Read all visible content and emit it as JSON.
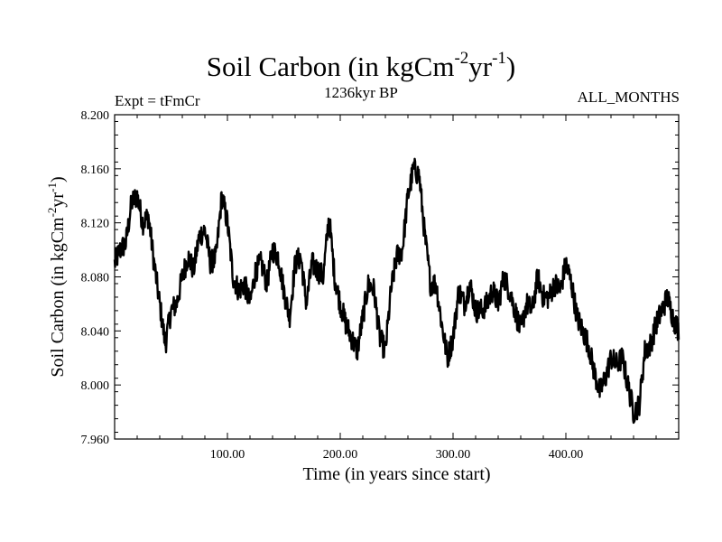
{
  "chart_data": {
    "type": "line",
    "title_main": "Soil Carbon (in kgCm",
    "title_exp1": "-2",
    "title_mid": "yr",
    "title_exp2": "-1",
    "title_end": ")",
    "subtitle": "1236kyr BP",
    "experiment_label": "Expt = tFmCr",
    "season_label": "ALL_MONTHS",
    "xlabel": "Time (in years since start)",
    "ylabel_main": "Soil Carbon (in kgCm",
    "ylabel_exp1": "-2",
    "ylabel_mid": "yr",
    "ylabel_exp2": "-1",
    "ylabel_end": ")",
    "xlim": [
      0,
      500
    ],
    "ylim": [
      7.96,
      8.2
    ],
    "x_ticks": [
      100,
      200,
      300,
      400
    ],
    "x_tick_labels": [
      "100.00",
      "200.00",
      "300.00",
      "400.00"
    ],
    "y_ticks": [
      7.96,
      8.0,
      8.04,
      8.08,
      8.12,
      8.16,
      8.2
    ],
    "y_tick_labels": [
      "7.960",
      "8.000",
      "8.040",
      "8.080",
      "8.120",
      "8.160",
      "8.200"
    ],
    "series": [
      {
        "name": "Soil Carbon",
        "x": [
          0,
          5,
          10,
          15,
          20,
          25,
          30,
          35,
          40,
          45,
          50,
          55,
          60,
          65,
          70,
          75,
          80,
          85,
          90,
          95,
          100,
          105,
          110,
          115,
          120,
          125,
          130,
          135,
          140,
          145,
          150,
          155,
          160,
          165,
          170,
          175,
          180,
          185,
          190,
          195,
          200,
          205,
          210,
          215,
          220,
          225,
          230,
          235,
          240,
          245,
          250,
          255,
          260,
          265,
          270,
          275,
          280,
          285,
          290,
          295,
          300,
          305,
          310,
          315,
          320,
          325,
          330,
          335,
          340,
          345,
          350,
          355,
          360,
          365,
          370,
          375,
          380,
          385,
          390,
          395,
          400,
          405,
          410,
          415,
          420,
          425,
          430,
          435,
          440,
          445,
          450,
          455,
          460,
          465,
          470,
          475,
          480,
          485,
          490,
          495,
          500
        ],
        "y": [
          8.09,
          8.1,
          8.105,
          8.135,
          8.14,
          8.12,
          8.125,
          8.09,
          8.06,
          8.03,
          8.055,
          8.06,
          8.08,
          8.095,
          8.085,
          8.11,
          8.115,
          8.09,
          8.095,
          8.14,
          8.12,
          8.08,
          8.07,
          8.075,
          8.06,
          8.085,
          8.09,
          8.075,
          8.1,
          8.095,
          8.07,
          8.05,
          8.09,
          8.095,
          8.06,
          8.09,
          8.085,
          8.08,
          8.125,
          8.08,
          8.06,
          8.045,
          8.035,
          8.025,
          8.05,
          8.075,
          8.07,
          8.035,
          8.025,
          8.07,
          8.095,
          8.1,
          8.14,
          8.16,
          8.155,
          8.11,
          8.075,
          8.075,
          8.045,
          8.02,
          8.035,
          8.07,
          8.06,
          8.075,
          8.055,
          8.055,
          8.06,
          8.07,
          8.06,
          8.08,
          8.07,
          8.055,
          8.04,
          8.06,
          8.055,
          8.08,
          8.065,
          8.065,
          8.075,
          8.07,
          8.09,
          8.075,
          8.05,
          8.04,
          8.03,
          8.01,
          7.995,
          8.005,
          8.02,
          8.015,
          8.02,
          8.0,
          7.98,
          7.985,
          8.025,
          8.03,
          8.045,
          8.055,
          8.065,
          8.05,
          8.04
        ]
      }
    ]
  }
}
